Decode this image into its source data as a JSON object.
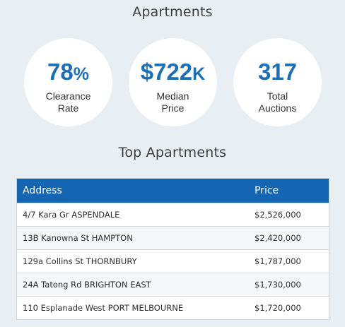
{
  "apartments_title": "Apartments",
  "stats": [
    {
      "value": "78",
      "suffix": "%",
      "label_line1": "Clearance",
      "label_line2": "Rate"
    },
    {
      "value": "$722",
      "suffix": "K",
      "label_line1": "Median",
      "label_line2": "Price"
    },
    {
      "value": "317",
      "suffix": "",
      "label_line1": "Total",
      "label_line2": "Auctions"
    }
  ],
  "top_title": "Top Apartments",
  "table": {
    "headers": {
      "address": "Address",
      "price": "Price"
    },
    "rows": [
      {
        "address": "4/7 Kara Gr ASPENDALE",
        "price": "$2,526,000"
      },
      {
        "address": "13B Kanowna St HAMPTON",
        "price": "$2,420,000"
      },
      {
        "address": "129a Collins St THORNBURY",
        "price": "$1,787,000"
      },
      {
        "address": "24A Tatong Rd BRIGHTON EAST",
        "price": "$1,730,000"
      },
      {
        "address": "110 Esplanade West PORT MELBOURNE",
        "price": "$1,720,000"
      }
    ]
  },
  "colors": {
    "accent": "#1466b3",
    "stat_value": "#1b6fb8",
    "background": "#e9eef2"
  }
}
